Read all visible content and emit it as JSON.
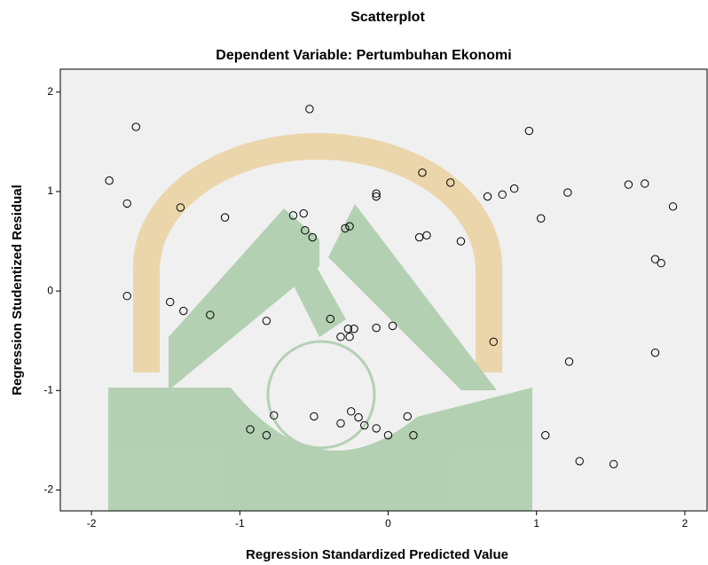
{
  "chart_data": {
    "type": "scatter",
    "title": "Scatterplot",
    "subtitle": "Dependent Variable: Pertumbuhan Ekonomi",
    "x_label": "Regression Standardized Predicted Value",
    "y_label": "Regression Studentized Residual",
    "x": [
      -1.88,
      -1.7,
      -1.76,
      -1.4,
      -1.76,
      -1.47,
      -1.38,
      -1.2,
      -1.1,
      -0.82,
      -0.93,
      -0.82,
      -0.77,
      -0.64,
      -0.57,
      -0.56,
      -0.51,
      -0.53,
      -0.29,
      -0.26,
      -0.39,
      -0.32,
      -0.27,
      -0.26,
      -0.23,
      -0.5,
      -0.32,
      -0.25,
      -0.2,
      -0.16,
      -0.08,
      0.0,
      -0.08,
      -0.08,
      -0.08,
      0.03,
      0.13,
      0.17,
      0.23,
      0.21,
      0.26,
      0.42,
      0.49,
      0.67,
      0.77,
      0.85,
      0.71,
      0.95,
      1.03,
      1.06,
      1.21,
      1.22,
      1.29,
      1.52,
      1.62,
      1.73,
      1.8,
      1.84,
      1.8,
      1.92
    ],
    "values": [
      1.11,
      1.65,
      0.88,
      0.84,
      -0.05,
      -0.11,
      -0.2,
      -0.24,
      0.74,
      -0.3,
      -1.39,
      -1.45,
      -1.25,
      0.76,
      0.78,
      0.61,
      0.54,
      1.83,
      0.63,
      0.65,
      -0.28,
      -0.46,
      -0.38,
      -0.46,
      -0.38,
      -1.26,
      -1.33,
      -1.21,
      -1.27,
      -1.35,
      -1.38,
      -1.45,
      0.98,
      0.95,
      -0.37,
      -0.35,
      -1.26,
      -1.45,
      1.19,
      0.54,
      0.56,
      1.09,
      0.5,
      0.95,
      0.97,
      1.03,
      -0.51,
      1.61,
      0.73,
      -1.45,
      0.99,
      -0.71,
      -1.71,
      -1.74,
      1.07,
      1.08,
      0.32,
      0.28,
      -0.62,
      0.85
    ],
    "color": "#000000",
    "background": "#f0f0f0",
    "xlim": [
      -2.21,
      2.15
    ],
    "ylim": [
      -2.21,
      2.23
    ],
    "xticks": [
      -2,
      -1,
      0,
      1,
      2
    ],
    "yticks": [
      -2,
      -1,
      0,
      1,
      2
    ]
  }
}
